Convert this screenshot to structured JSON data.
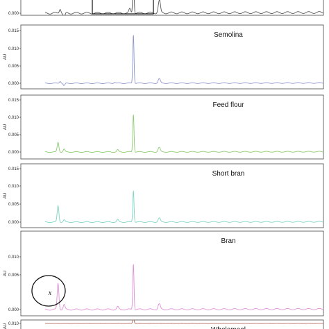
{
  "chart_data": [
    {
      "type": "line",
      "title": "",
      "ylabel": "",
      "ylim": [
        0,
        0.002
      ],
      "y_ticks": [
        "0.000"
      ],
      "color": "#555555",
      "annotation": "highlight-box",
      "cropped_top": true,
      "peaks": [
        {
          "x": 0.13,
          "y": 0.0006
        },
        {
          "x": 0.143,
          "y": -0.0007
        },
        {
          "x": 0.36,
          "y": 0.0005
        },
        {
          "x": 0.372,
          "y": 0.006
        },
        {
          "x": 0.455,
          "y": 0.0007
        },
        {
          "x": 0.459,
          "y": 0.0013
        }
      ]
    },
    {
      "type": "line",
      "title": "Semolina",
      "ylabel": "AU",
      "ylim": [
        0,
        0.016
      ],
      "y_ticks": [
        "0.015",
        "0.010",
        "0.005",
        "0.000"
      ],
      "color": "#8f93cf",
      "peaks": [
        {
          "x": 0.13,
          "y": 0.0006
        },
        {
          "x": 0.143,
          "y": -0.0007
        },
        {
          "x": 0.31,
          "y": 0.0003
        },
        {
          "x": 0.372,
          "y": 0.014
        },
        {
          "x": 0.455,
          "y": 0.0007
        },
        {
          "x": 0.459,
          "y": 0.0009
        }
      ]
    },
    {
      "type": "line",
      "title": "Feed flour",
      "ylabel": "AU",
      "ylim": [
        0,
        0.016
      ],
      "y_ticks": [
        "0.015",
        "0.010",
        "0.005",
        "0.000"
      ],
      "color": "#8ccd70",
      "peaks": [
        {
          "x": 0.123,
          "y": 0.0028
        },
        {
          "x": 0.143,
          "y": 0.0008
        },
        {
          "x": 0.32,
          "y": 0.0006
        },
        {
          "x": 0.372,
          "y": 0.011
        },
        {
          "x": 0.455,
          "y": 0.0008
        },
        {
          "x": 0.459,
          "y": 0.0008
        }
      ]
    },
    {
      "type": "line",
      "title": "Short bran",
      "ylabel": "AU",
      "ylim": [
        0,
        0.016
      ],
      "y_ticks": [
        "0.015",
        "0.010",
        "0.005",
        "0.000"
      ],
      "color": "#7fd6c4",
      "peaks": [
        {
          "x": 0.123,
          "y": 0.0046
        },
        {
          "x": 0.143,
          "y": 0.0006
        },
        {
          "x": 0.32,
          "y": 0.0007
        },
        {
          "x": 0.372,
          "y": 0.009
        },
        {
          "x": 0.455,
          "y": 0.0006
        },
        {
          "x": 0.459,
          "y": 0.0008
        }
      ]
    },
    {
      "type": "line",
      "title": "Bran",
      "ylabel": "AU",
      "ylim": [
        0,
        0.013
      ],
      "y_ticks": [
        "0.010",
        "0.005",
        "0.000"
      ],
      "color": "#e08fd6",
      "annotation": "circle-x",
      "annotation_label": "x",
      "peaks": [
        {
          "x": 0.123,
          "y": 0.005
        },
        {
          "x": 0.143,
          "y": 0.0009
        },
        {
          "x": 0.32,
          "y": 0.0005
        },
        {
          "x": 0.372,
          "y": 0.0088
        },
        {
          "x": 0.455,
          "y": 0.0006
        },
        {
          "x": 0.459,
          "y": 0.0007
        }
      ]
    },
    {
      "type": "line",
      "title": "Wholemeal",
      "ylabel": "AU",
      "ylim": [
        0,
        0.016
      ],
      "y_ticks": [
        "0.010"
      ],
      "color": "#b56a5e",
      "cropped_bottom": true,
      "peaks": [
        {
          "x": 0.372,
          "y": 0.014
        }
      ]
    }
  ]
}
